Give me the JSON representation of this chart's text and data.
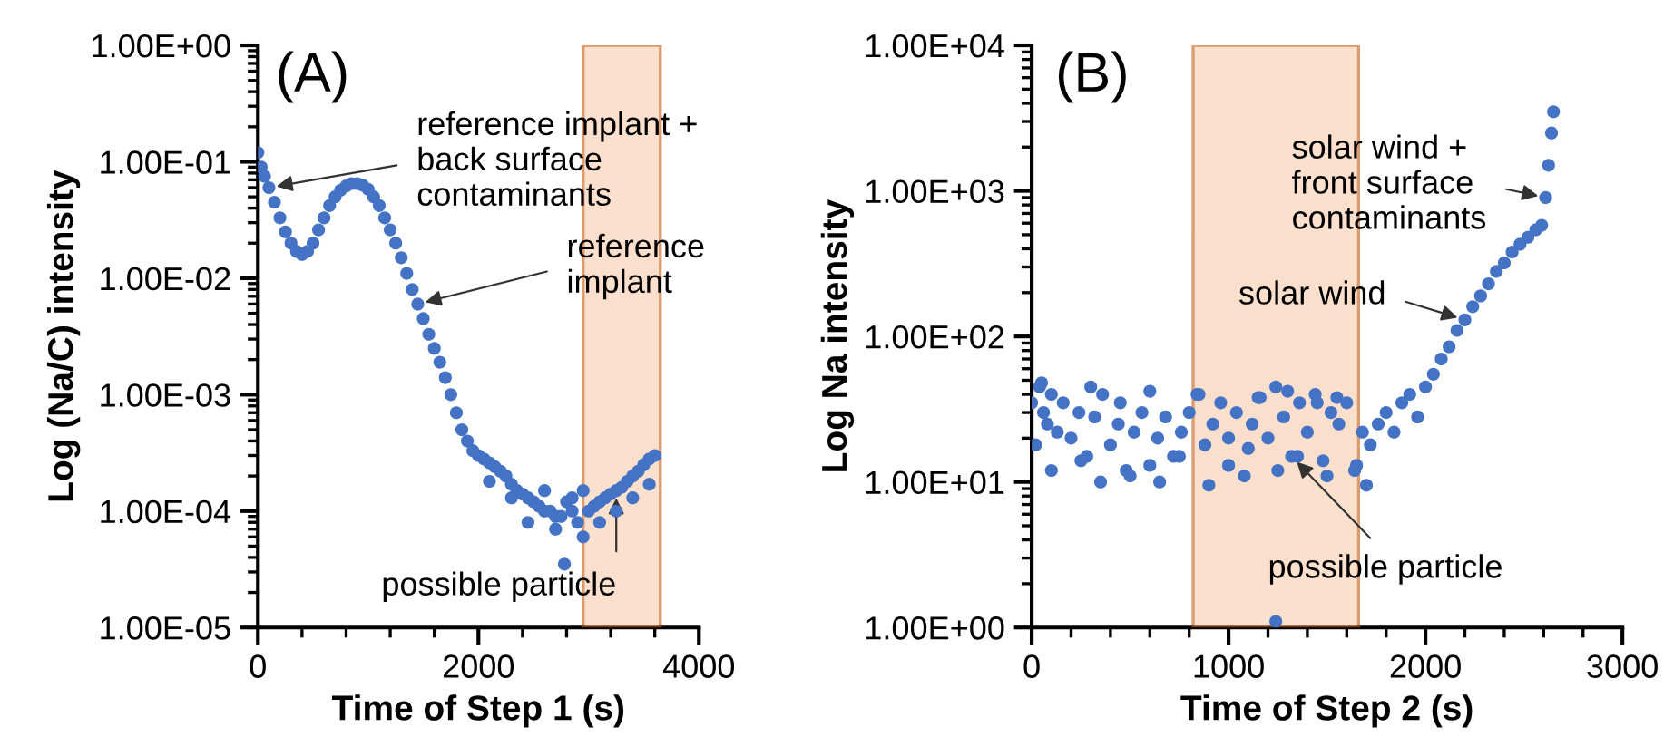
{
  "chart_data": [
    {
      "type": "scatter",
      "title": "(A)",
      "xlabel": "Time of Step 1 (s)",
      "ylabel": "Log (Na/C) intensity",
      "log": "y",
      "marker": "circle",
      "grid": false,
      "legend": false,
      "xlim": [
        0,
        4000
      ],
      "xticks": [
        0,
        2000,
        4000
      ],
      "ylim": [
        1e-05,
        1
      ],
      "yticks": [
        {
          "value": 1e-05,
          "label": "1.00E-05"
        },
        {
          "value": 0.0001,
          "label": "1.00E-04"
        },
        {
          "value": 0.001,
          "label": "1.00E-03"
        },
        {
          "value": 0.01,
          "label": "1.00E-02"
        },
        {
          "value": 0.1,
          "label": "1.00E-01"
        },
        {
          "value": 1,
          "label": "1.00E+00"
        }
      ],
      "series": [
        {
          "color": "#4472c4",
          "x": [
            0,
            30,
            60,
            100,
            150,
            200,
            250,
            300,
            350,
            400,
            450,
            500,
            550,
            600,
            650,
            700,
            750,
            800,
            850,
            900,
            950,
            1000,
            1050,
            1100,
            1150,
            1200,
            1250,
            1300,
            1350,
            1400,
            1450,
            1500,
            1550,
            1600,
            1650,
            1700,
            1750,
            1800,
            1850,
            1900,
            1950,
            2000,
            2050,
            2100,
            2150,
            2200,
            2250,
            2300,
            2350,
            2400,
            2450,
            2500,
            2550,
            2600,
            2650,
            2700,
            2750,
            2780,
            2800,
            2850,
            2900,
            2950,
            3000,
            3050,
            3100,
            3150,
            3200,
            3250,
            3300,
            3350,
            3400,
            3450,
            3500,
            3550,
            3600,
            2100,
            2300,
            2450,
            2600,
            2700,
            2850,
            2950,
            3100,
            3250,
            3400,
            3550
          ],
          "values": [
            0.12,
            0.09,
            0.075,
            0.06,
            0.045,
            0.033,
            0.025,
            0.02,
            0.017,
            0.016,
            0.017,
            0.02,
            0.026,
            0.033,
            0.042,
            0.05,
            0.057,
            0.062,
            0.065,
            0.065,
            0.063,
            0.058,
            0.05,
            0.042,
            0.033,
            0.026,
            0.02,
            0.015,
            0.011,
            0.008,
            0.006,
            0.0045,
            0.0033,
            0.0025,
            0.0019,
            0.0014,
            0.001,
            0.0007,
            0.0005,
            0.0004,
            0.00033,
            0.0003,
            0.00028,
            0.00026,
            0.00024,
            0.00022,
            0.0002,
            0.00017,
            0.00015,
            0.00014,
            0.00013,
            0.00012,
            0.00011,
            0.0001,
            0.0001,
            9e-05,
            9e-05,
            3.5e-05,
            0.00012,
            0.0001,
            8e-05,
            6e-05,
            0.0001,
            0.00011,
            0.00012,
            0.00013,
            0.00014,
            0.00015,
            0.00016,
            0.00018,
            0.0002,
            0.00022,
            0.00025,
            0.00028,
            0.0003,
            0.00018,
            0.00013,
            8e-05,
            0.00015,
            7e-05,
            0.00013,
            0.00015,
            8e-05,
            0.0001,
            0.00013,
            0.00017
          ]
        }
      ],
      "bands": [
        {
          "axis": "x",
          "from": 2950,
          "to": 3650,
          "color": "#f8cbad"
        }
      ],
      "annotations": [
        {
          "text": "reference implant +\nback surface\ncontaminants",
          "x": 100,
          "y": 0.06
        },
        {
          "text": "reference\nimplant",
          "x": 1450,
          "y": 0.006
        },
        {
          "text": "possible particle",
          "x": 3250,
          "y": 0.00015
        }
      ]
    },
    {
      "type": "scatter",
      "title": "(B)",
      "xlabel": "Time of Step 2 (s)",
      "ylabel": "Log Na intensity",
      "log": "y",
      "marker": "circle",
      "grid": false,
      "legend": false,
      "xlim": [
        0,
        3000
      ],
      "xticks": [
        0,
        1000,
        2000,
        3000
      ],
      "ylim": [
        1,
        10000
      ],
      "yticks": [
        {
          "value": 1,
          "label": "1.00E+00"
        },
        {
          "value": 10,
          "label": "1.00E+01"
        },
        {
          "value": 100,
          "label": "1.00E+02"
        },
        {
          "value": 1000,
          "label": "1.00E+03"
        },
        {
          "value": 10000,
          "label": "1.00E+04"
        }
      ],
      "series": [
        {
          "color": "#4472c4",
          "x": [
            0,
            20,
            40,
            60,
            80,
            100,
            130,
            160,
            200,
            240,
            280,
            320,
            360,
            400,
            440,
            480,
            520,
            560,
            600,
            640,
            680,
            720,
            760,
            800,
            840,
            880,
            920,
            960,
            1000,
            1040,
            1080,
            1120,
            1160,
            1200,
            1240,
            1280,
            1320,
            1360,
            1400,
            1440,
            1480,
            1520,
            1560,
            1600,
            1640,
            1680,
            1720,
            1760,
            1800,
            1840,
            1880,
            1920,
            1960,
            2000,
            2040,
            2080,
            2120,
            2160,
            2200,
            2240,
            2280,
            2320,
            2360,
            2400,
            2440,
            2480,
            2520,
            2560,
            2590,
            2610,
            2625,
            2640,
            2650,
            1240,
            100,
            250,
            350,
            500,
            650,
            750,
            900,
            1000,
            1100,
            1250,
            1350,
            1500,
            1650,
            1700,
            50,
            300,
            450,
            600,
            850,
            1150,
            1300,
            1450,
            1550
          ],
          "values": [
            35,
            18,
            45,
            30,
            25,
            40,
            22,
            35,
            20,
            30,
            15,
            28,
            40,
            18,
            25,
            12,
            22,
            30,
            13,
            20,
            28,
            15,
            22,
            30,
            40,
            18,
            25,
            35,
            20,
            30,
            11,
            25,
            38,
            20,
            45,
            28,
            15,
            35,
            22,
            40,
            14,
            30,
            25,
            35,
            12,
            22,
            18,
            25,
            30,
            22,
            35,
            40,
            28,
            45,
            55,
            70,
            85,
            110,
            130,
            160,
            190,
            230,
            280,
            320,
            380,
            430,
            480,
            540,
            580,
            900,
            1500,
            2500,
            3500,
            1.1,
            12,
            14,
            10,
            11,
            10,
            15,
            9.5,
            13,
            17,
            12,
            15,
            11,
            13,
            9.5,
            48,
            45,
            35,
            42,
            40,
            38,
            42,
            35,
            38
          ]
        }
      ],
      "bands": [
        {
          "axis": "x",
          "from": 820,
          "to": 1660,
          "color": "#f8cbad"
        }
      ],
      "annotations": [
        {
          "text": "solar wind +\nfront surface\ncontaminants",
          "x": 2610,
          "y": 900
        },
        {
          "text": "solar wind",
          "x": 2200,
          "y": 130
        },
        {
          "text": "possible particle",
          "x": 1320,
          "y": 15
        }
      ]
    }
  ]
}
